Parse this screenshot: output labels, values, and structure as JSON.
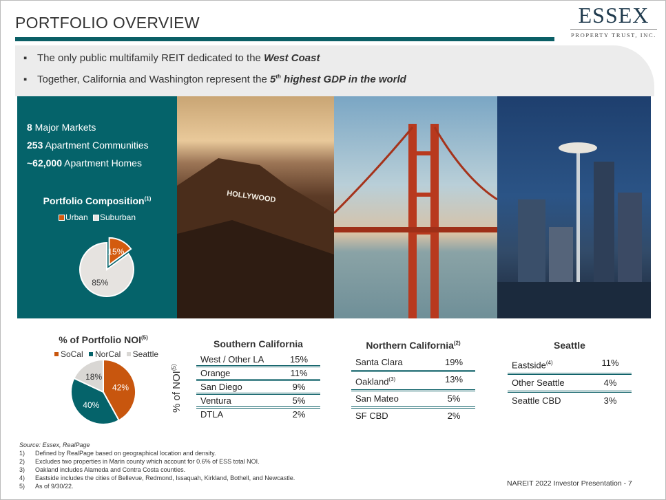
{
  "header": {
    "title": "PORTFOLIO OVERVIEW",
    "logo_main": "ESSEX",
    "logo_sub": "PROPERTY TRUST, INC."
  },
  "bullets": [
    {
      "text": "The only public multifamily REIT dedicated to the ",
      "emph": "West Coast"
    },
    {
      "text": "Together, California and Washington represent the ",
      "emph_sup": "5",
      "emph_sup_suffix": "th",
      "emph": " highest GDP in the world"
    }
  ],
  "stats": [
    {
      "value": "8",
      "label": " Major Markets"
    },
    {
      "value": "253",
      "label": " Apartment Communities"
    },
    {
      "value": "~62,000",
      "label": " Apartment Homes"
    }
  ],
  "composition": {
    "title": "Portfolio Composition",
    "note": "(1)",
    "chart_data": {
      "type": "pie",
      "series": [
        {
          "name": "Urban",
          "value": 15,
          "label": "15%",
          "color": "#d35b0f",
          "exploded": true
        },
        {
          "name": "Suburban",
          "value": 85,
          "label": "85%",
          "color": "#e6e3e0"
        }
      ]
    }
  },
  "photos": [
    "hollywood-hills",
    "golden-gate-bridge",
    "seattle-space-needle"
  ],
  "photo_sign": "HOLLYWOOD",
  "noi": {
    "title": "% of Portfolio NOI",
    "note": "(5)",
    "chart_data": {
      "type": "pie",
      "series": [
        {
          "name": "SoCal",
          "value": 42,
          "label": "42%",
          "color": "#c8560e"
        },
        {
          "name": "NorCal",
          "value": 40,
          "label": "40%",
          "color": "#05636a"
        },
        {
          "name": "Seattle",
          "value": 18,
          "label": "18%",
          "color": "#d9d7d4"
        }
      ]
    }
  },
  "axis_label": "% of NOI",
  "axis_note": "(5)",
  "tables": [
    {
      "title": "Southern California",
      "note": "",
      "rows": [
        {
          "name": "West / Other LA",
          "value": "15%"
        },
        {
          "name": "Orange",
          "value": "11%"
        },
        {
          "name": "San Diego",
          "value": "9%"
        },
        {
          "name": "Ventura",
          "value": "5%"
        },
        {
          "name": "DTLA",
          "value": "2%"
        }
      ]
    },
    {
      "title": "Northern California",
      "note": "(2)",
      "rows": [
        {
          "name": "Santa Clara",
          "value": "19%"
        },
        {
          "name": "Oakland",
          "note": "(3)",
          "value": "13%"
        },
        {
          "name": "San Mateo",
          "value": "5%"
        },
        {
          "name": "SF CBD",
          "value": "2%"
        }
      ]
    },
    {
      "title": "Seattle",
      "note": "",
      "rows": [
        {
          "name": "Eastside",
          "note": "(4)",
          "value": "11%"
        },
        {
          "name": "Other Seattle",
          "value": "4%"
        },
        {
          "name": "Seattle CBD",
          "value": "3%"
        }
      ]
    }
  ],
  "footnotes": {
    "source": "Source: Essex, RealPage",
    "items": [
      {
        "n": "1)",
        "text": "Defined by RealPage based on geographical location and density."
      },
      {
        "n": "2)",
        "text": "Excludes two properties in Marin county which account for 0.6% of ESS total NOI."
      },
      {
        "n": "3)",
        "text": "Oakland includes Alameda and Contra Costa counties."
      },
      {
        "n": "4)",
        "text": "Eastside includes the cities of Bellevue, Redmond, Issaquah, Kirkland, Bothell, and Newcastle."
      },
      {
        "n": "5)",
        "text": "As of 9/30/22."
      }
    ]
  },
  "footer": {
    "page": "NAREIT 2022 Investor Presentation -  7"
  },
  "colors": {
    "teal": "#05636a",
    "orange": "#d35b0f",
    "grey": "#ececec"
  }
}
